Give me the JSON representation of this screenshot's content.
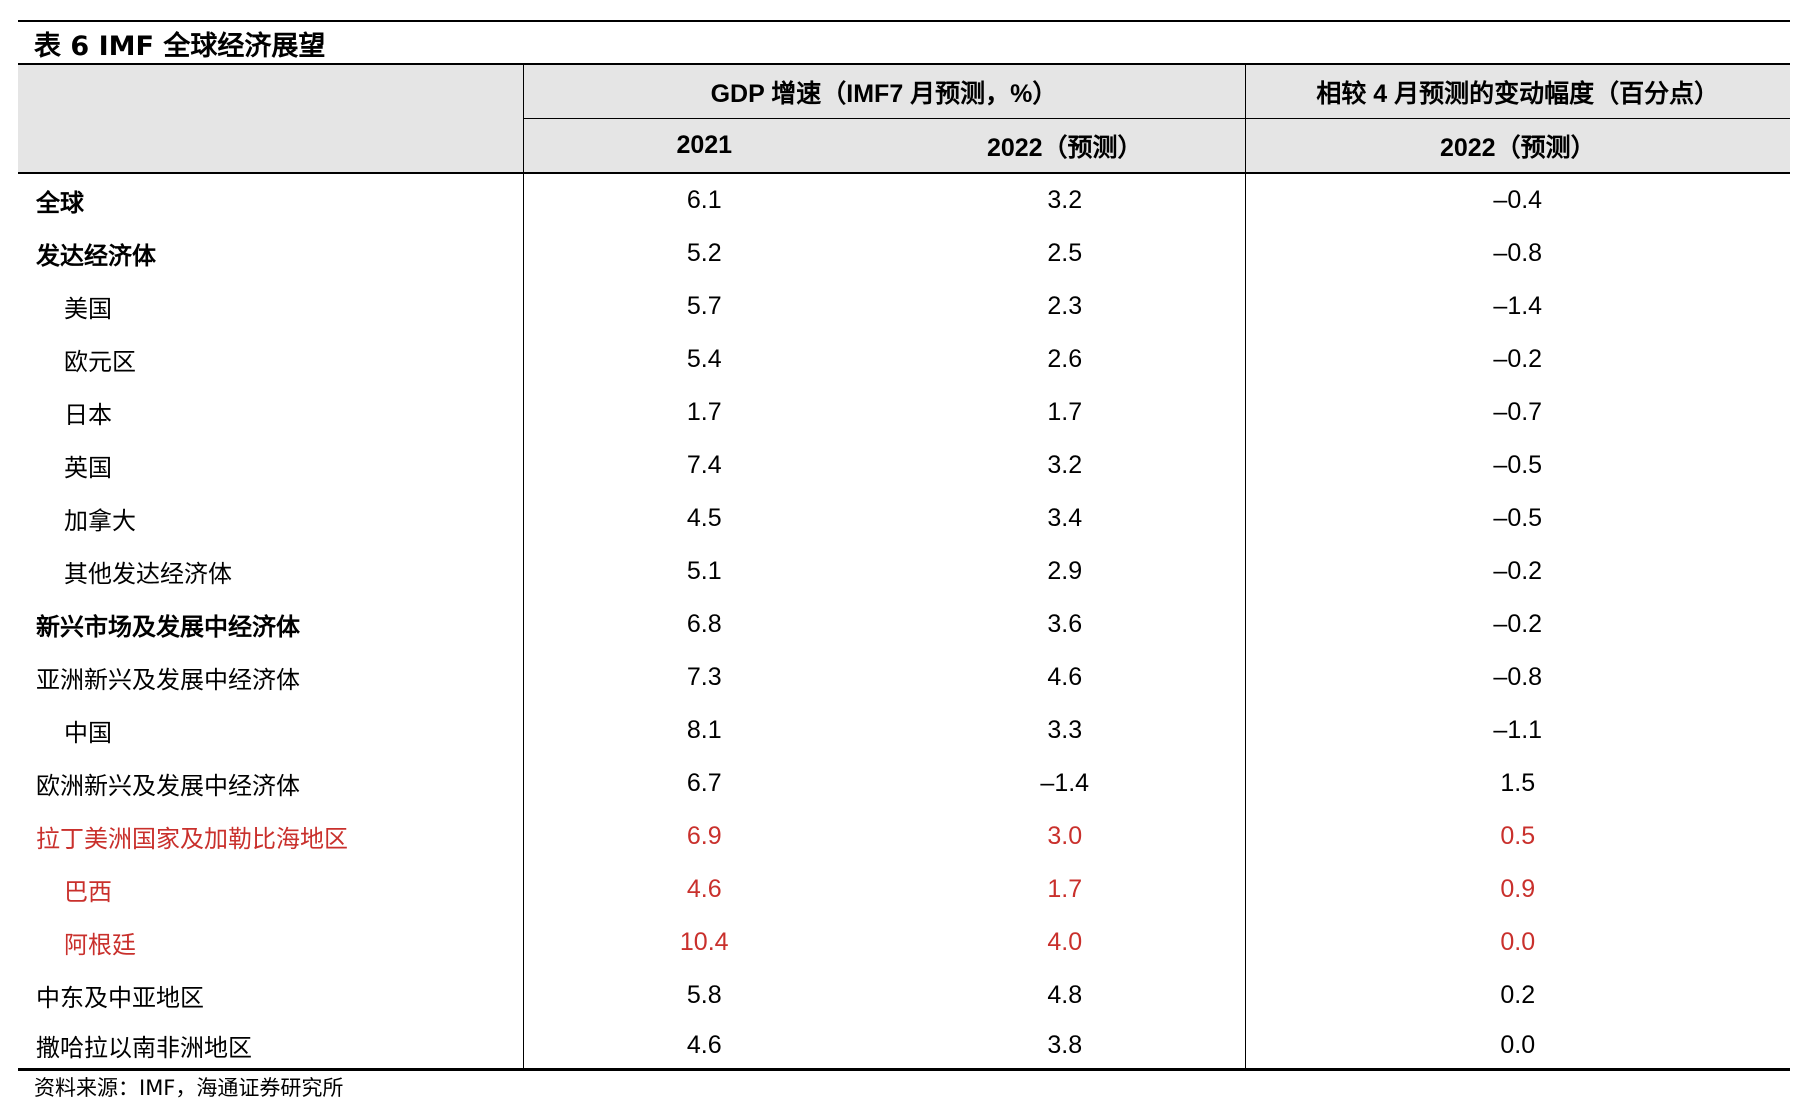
{
  "title": "表 6 IMF 全球经济展望",
  "header": {
    "gdp_group": "GDP 增速（IMF7 月预测，%）",
    "change_group": "相较 4 月预测的变动幅度（百分点）",
    "col_2021": "2021",
    "col_2022": "2022（预测）",
    "col_change_2022": "2022（预测）"
  },
  "rows": [
    {
      "name": "全球",
      "v2021": "6.1",
      "v2022": "3.2",
      "change": "–0.4"
    },
    {
      "name": "发达经济体",
      "v2021": "5.2",
      "v2022": "2.5",
      "change": "–0.8"
    },
    {
      "name": "美国",
      "v2021": "5.7",
      "v2022": "2.3",
      "change": "–1.4"
    },
    {
      "name": "欧元区",
      "v2021": "5.4",
      "v2022": "2.6",
      "change": "–0.2"
    },
    {
      "name": "日本",
      "v2021": "1.7",
      "v2022": "1.7",
      "change": "–0.7"
    },
    {
      "name": "英国",
      "v2021": "7.4",
      "v2022": "3.2",
      "change": "–0.5"
    },
    {
      "name": "加拿大",
      "v2021": "4.5",
      "v2022": "3.4",
      "change": "–0.5"
    },
    {
      "name": "其他发达经济体",
      "v2021": "5.1",
      "v2022": "2.9",
      "change": "–0.2"
    },
    {
      "name": "新兴市场及发展中经济体",
      "v2021": "6.8",
      "v2022": "3.6",
      "change": "–0.2"
    },
    {
      "name": "亚洲新兴及发展中经济体",
      "v2021": "7.3",
      "v2022": "4.6",
      "change": "–0.8"
    },
    {
      "name": "中国",
      "v2021": "8.1",
      "v2022": "3.3",
      "change": "–1.1"
    },
    {
      "name": "欧洲新兴及发展中经济体",
      "v2021": "6.7",
      "v2022": "–1.4",
      "change": "1.5"
    },
    {
      "name": "拉丁美洲国家及加勒比海地区",
      "v2021": "6.9",
      "v2022": "3.0",
      "change": "0.5"
    },
    {
      "name": "巴西",
      "v2021": "4.6",
      "v2022": "1.7",
      "change": "0.9"
    },
    {
      "name": "阿根廷",
      "v2021": "10.4",
      "v2022": "4.0",
      "change": "0.0"
    },
    {
      "name": "中东及中亚地区",
      "v2021": "5.8",
      "v2022": "4.8",
      "change": "0.2"
    },
    {
      "name": "撒哈拉以南非洲地区",
      "v2021": "4.6",
      "v2022": "3.8",
      "change": "0.0"
    }
  ],
  "colors": {
    "highlight": "#c9302c"
  },
  "source": "资料来源：IMF，海通证券研究所"
}
